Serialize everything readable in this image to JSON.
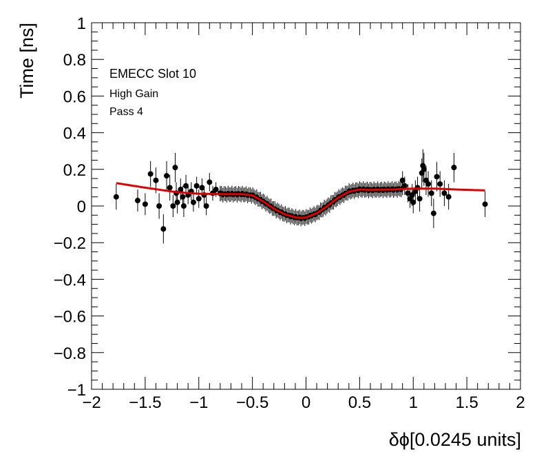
{
  "chart_data": {
    "type": "scatter",
    "xlabel": "δϕ[0.0245 units]",
    "ylabel": "Time [ns]",
    "xlim": [
      -2,
      2
    ],
    "ylim": [
      -1,
      1
    ],
    "x_ticks": [
      -2,
      -1.5,
      -1,
      -0.5,
      0,
      0.5,
      1,
      1.5,
      2
    ],
    "x_tick_labels": [
      "−2",
      "−1.5",
      "−1",
      "−0.5",
      "0",
      "0.5",
      "1",
      "1.5",
      "2"
    ],
    "y_ticks": [
      -1,
      -0.8,
      -0.6,
      -0.4,
      -0.2,
      0,
      0.2,
      0.4,
      0.6,
      0.8,
      1
    ],
    "y_tick_labels": [
      "−1",
      "−0.8",
      "−0.6",
      "−0.4",
      "−0.2",
      "0",
      "0.2",
      "0.4",
      "0.6",
      "0.8",
      "1"
    ],
    "annotations": [
      "EMECC Slot 10",
      "High Gain",
      "Pass 4"
    ],
    "grid": false,
    "legend": "none",
    "series": [
      {
        "kind": "points",
        "color": "#000000",
        "points": [
          {
            "x": -1.77,
            "y": 0.05,
            "err": 0.07
          },
          {
            "x": -1.57,
            "y": 0.03,
            "err": 0.06
          },
          {
            "x": -1.5,
            "y": 0.01,
            "err": 0.06
          },
          {
            "x": -1.45,
            "y": 0.175,
            "err": 0.07
          },
          {
            "x": -1.4,
            "y": 0.14,
            "err": 0.07
          },
          {
            "x": -1.37,
            "y": 0.0,
            "err": 0.07
          },
          {
            "x": -1.33,
            "y": -0.125,
            "err": 0.08
          },
          {
            "x": -1.3,
            "y": 0.165,
            "err": 0.08
          },
          {
            "x": -1.27,
            "y": 0.1,
            "err": 0.07
          },
          {
            "x": -1.24,
            "y": 0.0,
            "err": 0.06
          },
          {
            "x": -1.22,
            "y": 0.21,
            "err": 0.08
          },
          {
            "x": -1.2,
            "y": 0.02,
            "err": 0.06
          },
          {
            "x": -1.17,
            "y": 0.09,
            "err": 0.06
          },
          {
            "x": -1.15,
            "y": 0.05,
            "err": 0.06
          },
          {
            "x": -1.12,
            "y": 0.11,
            "err": 0.06
          },
          {
            "x": -1.1,
            "y": 0.06,
            "err": 0.05
          },
          {
            "x": -1.07,
            "y": 0.08,
            "err": 0.05
          },
          {
            "x": -1.05,
            "y": 0.02,
            "err": 0.05
          },
          {
            "x": -1.02,
            "y": 0.11,
            "err": 0.05
          },
          {
            "x": -1.0,
            "y": 0.04,
            "err": 0.05
          },
          {
            "x": -0.97,
            "y": 0.1,
            "err": 0.05
          },
          {
            "x": -0.95,
            "y": 0.06,
            "err": 0.05
          },
          {
            "x": -0.93,
            "y": 0.0,
            "err": 0.05
          },
          {
            "x": -0.9,
            "y": 0.13,
            "err": 0.05
          },
          {
            "x": -0.87,
            "y": 0.07,
            "err": 0.04
          },
          {
            "x": -0.84,
            "y": 0.09,
            "err": 0.04
          },
          {
            "x": -0.8,
            "y": 0.07,
            "err": 0.04
          },
          {
            "x": -1.21,
            "y": 0.07,
            "err": 0.06
          },
          {
            "x": -1.14,
            "y": 0.0,
            "err": 0.06
          },
          {
            "x": 0.9,
            "y": 0.14,
            "err": 0.05
          },
          {
            "x": 0.92,
            "y": 0.11,
            "err": 0.05
          },
          {
            "x": 0.95,
            "y": 0.07,
            "err": 0.05
          },
          {
            "x": 0.97,
            "y": 0.04,
            "err": 0.05
          },
          {
            "x": 0.99,
            "y": 0.06,
            "err": 0.06
          },
          {
            "x": 1.0,
            "y": 0.02,
            "err": 0.06
          },
          {
            "x": 1.02,
            "y": 0.08,
            "err": 0.06
          },
          {
            "x": 1.04,
            "y": 0.1,
            "err": 0.06
          },
          {
            "x": 1.06,
            "y": 0.04,
            "err": 0.07
          },
          {
            "x": 1.08,
            "y": 0.18,
            "err": 0.08
          },
          {
            "x": 1.09,
            "y": 0.22,
            "err": 0.09
          },
          {
            "x": 1.1,
            "y": 0.2,
            "err": 0.09
          },
          {
            "x": 1.12,
            "y": 0.14,
            "err": 0.08
          },
          {
            "x": 1.14,
            "y": 0.12,
            "err": 0.07
          },
          {
            "x": 1.17,
            "y": 0.07,
            "err": 0.07
          },
          {
            "x": 1.19,
            "y": -0.04,
            "err": 0.08
          },
          {
            "x": 1.22,
            "y": 0.16,
            "err": 0.08
          },
          {
            "x": 1.25,
            "y": 0.12,
            "err": 0.07
          },
          {
            "x": 1.29,
            "y": 0.07,
            "err": 0.07
          },
          {
            "x": 1.33,
            "y": 0.05,
            "err": 0.07
          },
          {
            "x": 1.38,
            "y": 0.21,
            "err": 0.08
          },
          {
            "x": 1.67,
            "y": 0.01,
            "err": 0.07
          }
        ]
      },
      {
        "kind": "dense-band",
        "color": "#000000",
        "x_range": [
          -0.8,
          0.9
        ],
        "err": 0.04
      },
      {
        "kind": "fit-line",
        "color": "#e00000",
        "x": [
          -1.77,
          -1.5,
          -1.2,
          -1.0,
          -0.8,
          -0.6,
          -0.5,
          -0.4,
          -0.3,
          -0.2,
          -0.1,
          -0.05,
          0.0,
          0.1,
          0.2,
          0.3,
          0.4,
          0.5,
          0.6,
          0.8,
          1.0,
          1.2,
          1.4,
          1.67
        ],
        "y": [
          0.125,
          0.1,
          0.075,
          0.067,
          0.065,
          0.065,
          0.058,
          0.025,
          -0.015,
          -0.045,
          -0.062,
          -0.065,
          -0.063,
          -0.04,
          0.0,
          0.045,
          0.078,
          0.09,
          0.088,
          0.09,
          0.095,
          0.095,
          0.09,
          0.085
        ]
      }
    ]
  }
}
